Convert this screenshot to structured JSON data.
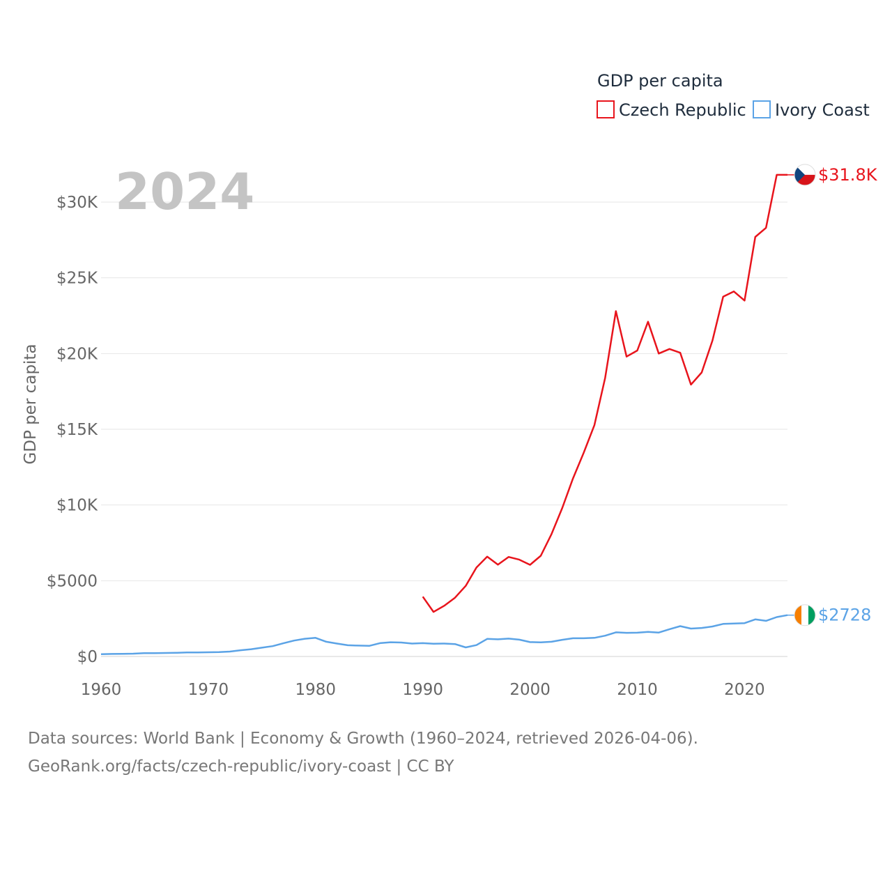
{
  "chart_data": {
    "type": "line",
    "title": "GDP per capita",
    "ylabel": "GDP per capita",
    "xlabel": "",
    "year_label": "2024",
    "xlim": [
      1960,
      2024
    ],
    "ylim": [
      0,
      32000
    ],
    "x_ticks": [
      1960,
      1970,
      1980,
      1990,
      2000,
      2010,
      2020
    ],
    "y_ticks": [
      {
        "value": 0,
        "label": "$0"
      },
      {
        "value": 5000,
        "label": "$5000"
      },
      {
        "value": 10000,
        "label": "$10K"
      },
      {
        "value": 15000,
        "label": "$15K"
      },
      {
        "value": 20000,
        "label": "$20K"
      },
      {
        "value": 25000,
        "label": "$25K"
      },
      {
        "value": 30000,
        "label": "$30K"
      }
    ],
    "legend_position": "top-right",
    "series": [
      {
        "name": "Czech Republic",
        "color": "#e8141c",
        "end_label": "$31.8K",
        "flag": "czech-flag-icon",
        "flag_colors": [
          "#ffffff",
          "#d7141a",
          "#11457e"
        ],
        "x": [
          1990,
          1991,
          1992,
          1993,
          1994,
          1995,
          1996,
          1997,
          1998,
          1999,
          2000,
          2001,
          2002,
          2003,
          2004,
          2005,
          2006,
          2007,
          2008,
          2009,
          2010,
          2011,
          2012,
          2013,
          2014,
          2015,
          2016,
          2017,
          2018,
          2019,
          2020,
          2021,
          2022,
          2023,
          2024
        ],
        "values": [
          3950,
          2940,
          3350,
          3880,
          4660,
          5870,
          6590,
          6060,
          6570,
          6390,
          6050,
          6650,
          8080,
          9800,
          11750,
          13450,
          15280,
          18400,
          22800,
          19800,
          20200,
          22100,
          20000,
          20300,
          20050,
          17950,
          18750,
          20850,
          23750,
          24100,
          23500,
          27700,
          28300,
          31800,
          31800
        ]
      },
      {
        "name": "Ivory Coast",
        "color": "#5ba3e6",
        "end_label": "$2728",
        "flag": "ivory-coast-flag-icon",
        "flag_colors": [
          "#f77f00",
          "#ffffff",
          "#009e60"
        ],
        "x": [
          1960,
          1961,
          1962,
          1963,
          1964,
          1965,
          1966,
          1967,
          1968,
          1969,
          1970,
          1971,
          1972,
          1973,
          1974,
          1975,
          1976,
          1977,
          1978,
          1979,
          1980,
          1981,
          1982,
          1983,
          1984,
          1985,
          1986,
          1987,
          1988,
          1989,
          1990,
          1991,
          1992,
          1993,
          1994,
          1995,
          1996,
          1997,
          1998,
          1999,
          2000,
          2001,
          2002,
          2003,
          2004,
          2005,
          2006,
          2007,
          2008,
          2009,
          2010,
          2011,
          2012,
          2013,
          2014,
          2015,
          2016,
          2017,
          2018,
          2019,
          2020,
          2021,
          2022,
          2023,
          2024
        ],
        "values": [
          150,
          165,
          170,
          185,
          220,
          215,
          230,
          240,
          260,
          265,
          275,
          290,
          320,
          410,
          480,
          580,
          680,
          870,
          1050,
          1170,
          1230,
          970,
          850,
          740,
          720,
          700,
          880,
          940,
          920,
          850,
          880,
          840,
          850,
          820,
          600,
          750,
          1160,
          1130,
          1180,
          1110,
          950,
          930,
          970,
          1100,
          1200,
          1200,
          1230,
          1370,
          1590,
          1560,
          1570,
          1620,
          1580,
          1800,
          2000,
          1840,
          1880,
          1980,
          2150,
          2170,
          2200,
          2450,
          2350,
          2600,
          2728
        ]
      }
    ]
  },
  "footer": {
    "line1": "Data sources: World Bank | Economy & Growth (1960–2024, retrieved 2026-04-06).",
    "line2": "GeoRank.org/facts/czech-republic/ivory-coast | CC BY"
  }
}
